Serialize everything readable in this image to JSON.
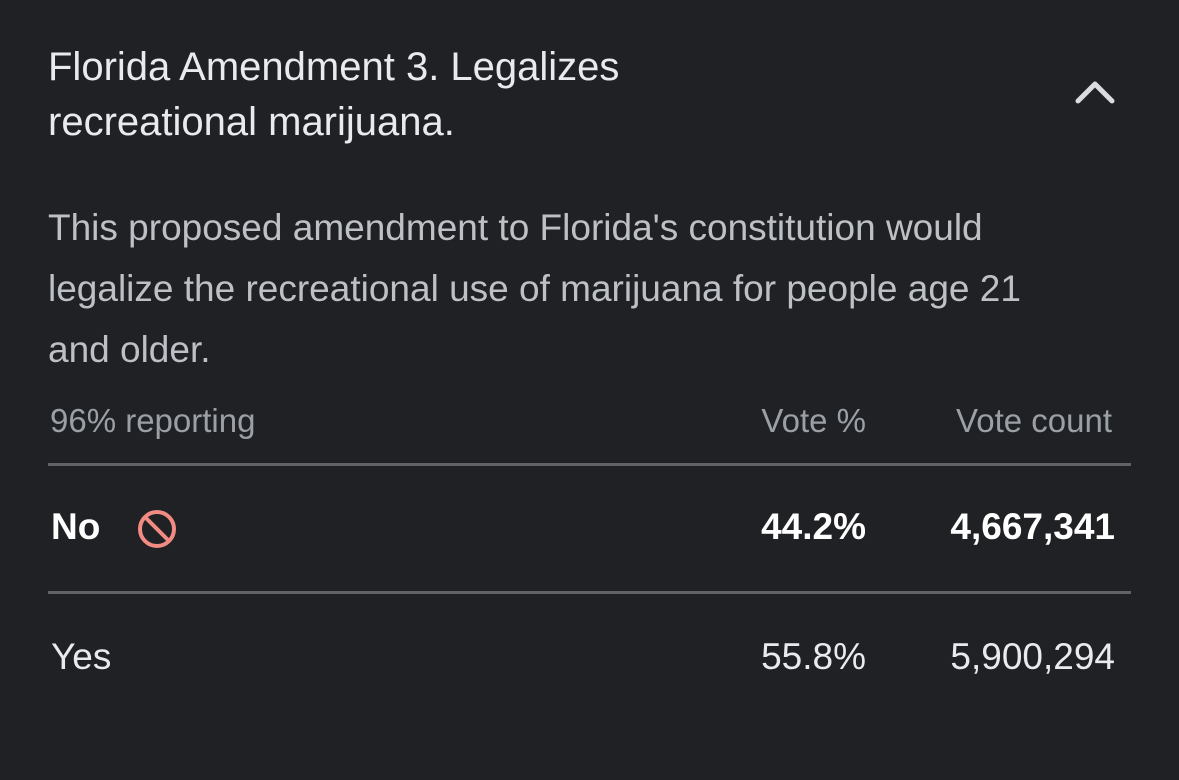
{
  "header": {
    "title": "Florida Amendment 3. Legalizes recreational marijuana."
  },
  "description": "This proposed amendment to Florida's constitution would legalize the recreational use of marijuana for people age 21 and older.",
  "table": {
    "caption": "96% reporting",
    "columns": [
      "Vote %",
      "Vote count"
    ],
    "rows": [
      [
        "No",
        "44.2%",
        "4,667,341"
      ],
      [
        "Yes",
        "55.8%",
        "5,900,294"
      ]
    ]
  }
}
